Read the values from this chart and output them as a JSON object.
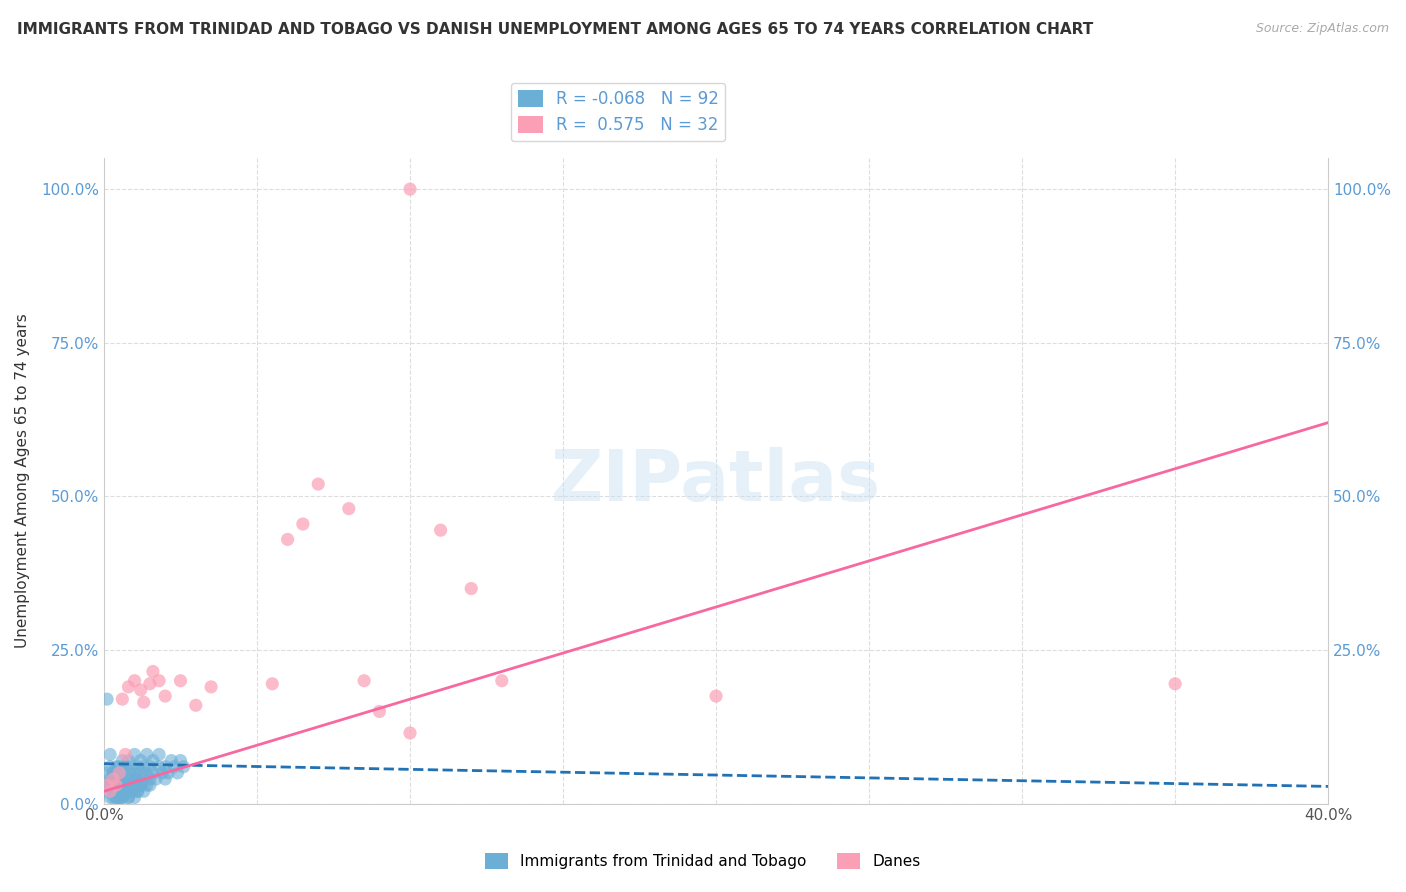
{
  "title": "IMMIGRANTS FROM TRINIDAD AND TOBAGO VS DANISH UNEMPLOYMENT AMONG AGES 65 TO 74 YEARS CORRELATION CHART",
  "source": "Source: ZipAtlas.com",
  "ylabel": "Unemployment Among Ages 65 to 74 years",
  "xlim": [
    0.0,
    0.4
  ],
  "ylim": [
    0.0,
    1.05
  ],
  "xticks": [
    0.0,
    0.05,
    0.1,
    0.15,
    0.2,
    0.25,
    0.3,
    0.35,
    0.4
  ],
  "yticks": [
    0.0,
    0.25,
    0.5,
    0.75,
    1.0
  ],
  "ytick_labels": [
    "0.0%",
    "25.0%",
    "50.0%",
    "75.0%",
    "100.0%"
  ],
  "xtick_labels": [
    "0.0%",
    "",
    "",
    "",
    "",
    "",
    "",
    "",
    "40.0%"
  ],
  "right_ytick_labels": [
    "100.0%",
    "75.0%",
    "50.0%",
    "25.0%"
  ],
  "blue_color": "#6baed6",
  "pink_color": "#fa9fb5",
  "blue_line_color": "#2171b5",
  "pink_line_color": "#f768a1",
  "legend_R_blue": "-0.068",
  "legend_N_blue": "92",
  "legend_R_pink": "0.575",
  "legend_N_pink": "32",
  "watermark": "ZIPatlas",
  "background_color": "#ffffff",
  "grid_color": "#dddddd",
  "blue_scatter_x": [
    0.001,
    0.001,
    0.001,
    0.002,
    0.002,
    0.002,
    0.002,
    0.003,
    0.003,
    0.003,
    0.003,
    0.003,
    0.004,
    0.004,
    0.004,
    0.004,
    0.004,
    0.004,
    0.005,
    0.005,
    0.005,
    0.005,
    0.005,
    0.006,
    0.006,
    0.006,
    0.006,
    0.006,
    0.007,
    0.007,
    0.007,
    0.007,
    0.008,
    0.008,
    0.008,
    0.008,
    0.009,
    0.009,
    0.009,
    0.01,
    0.01,
    0.01,
    0.01,
    0.011,
    0.011,
    0.012,
    0.012,
    0.013,
    0.013,
    0.014,
    0.014,
    0.015,
    0.015,
    0.016,
    0.016,
    0.017,
    0.018,
    0.018,
    0.019,
    0.02,
    0.02,
    0.021,
    0.022,
    0.023,
    0.024,
    0.025,
    0.026,
    0.001,
    0.002,
    0.003,
    0.004,
    0.005,
    0.006,
    0.007,
    0.008,
    0.009,
    0.01,
    0.011,
    0.012,
    0.013,
    0.014,
    0.015,
    0.003,
    0.004,
    0.005,
    0.006,
    0.007,
    0.008,
    0.009,
    0.01,
    0.011,
    0.012
  ],
  "blue_scatter_y": [
    0.02,
    0.03,
    0.05,
    0.03,
    0.01,
    0.04,
    0.06,
    0.04,
    0.02,
    0.01,
    0.03,
    0.05,
    0.05,
    0.02,
    0.03,
    0.01,
    0.04,
    0.06,
    0.06,
    0.03,
    0.02,
    0.01,
    0.04,
    0.07,
    0.03,
    0.02,
    0.05,
    0.01,
    0.04,
    0.03,
    0.06,
    0.02,
    0.05,
    0.03,
    0.07,
    0.01,
    0.04,
    0.02,
    0.06,
    0.05,
    0.03,
    0.08,
    0.01,
    0.04,
    0.06,
    0.05,
    0.07,
    0.04,
    0.06,
    0.05,
    0.08,
    0.06,
    0.03,
    0.07,
    0.05,
    0.04,
    0.06,
    0.08,
    0.05,
    0.04,
    0.06,
    0.05,
    0.07,
    0.06,
    0.05,
    0.07,
    0.06,
    0.17,
    0.08,
    0.05,
    0.04,
    0.03,
    0.02,
    0.03,
    0.02,
    0.03,
    0.04,
    0.02,
    0.03,
    0.02,
    0.03,
    0.04,
    0.02,
    0.01,
    0.01,
    0.01,
    0.02,
    0.01,
    0.02,
    0.03,
    0.02,
    0.03
  ],
  "pink_scatter_x": [
    0.001,
    0.002,
    0.003,
    0.004,
    0.005,
    0.006,
    0.007,
    0.008,
    0.01,
    0.012,
    0.013,
    0.015,
    0.016,
    0.018,
    0.02,
    0.025,
    0.03,
    0.035,
    0.055,
    0.06,
    0.065,
    0.07,
    0.08,
    0.085,
    0.09,
    0.1,
    0.11,
    0.12,
    0.13,
    0.2,
    0.35,
    0.1
  ],
  "pink_scatter_y": [
    0.03,
    0.02,
    0.04,
    0.03,
    0.05,
    0.17,
    0.08,
    0.19,
    0.2,
    0.185,
    0.165,
    0.195,
    0.215,
    0.2,
    0.175,
    0.2,
    0.16,
    0.19,
    0.195,
    0.43,
    0.455,
    0.52,
    0.48,
    0.2,
    0.15,
    0.115,
    0.445,
    0.35,
    0.2,
    0.175,
    0.195,
    1.0
  ],
  "blue_line_x": [
    0.0,
    0.4
  ],
  "blue_line_y": [
    0.065,
    0.028
  ],
  "pink_line_x": [
    0.0,
    0.4
  ],
  "pink_line_y": [
    0.02,
    0.62
  ]
}
